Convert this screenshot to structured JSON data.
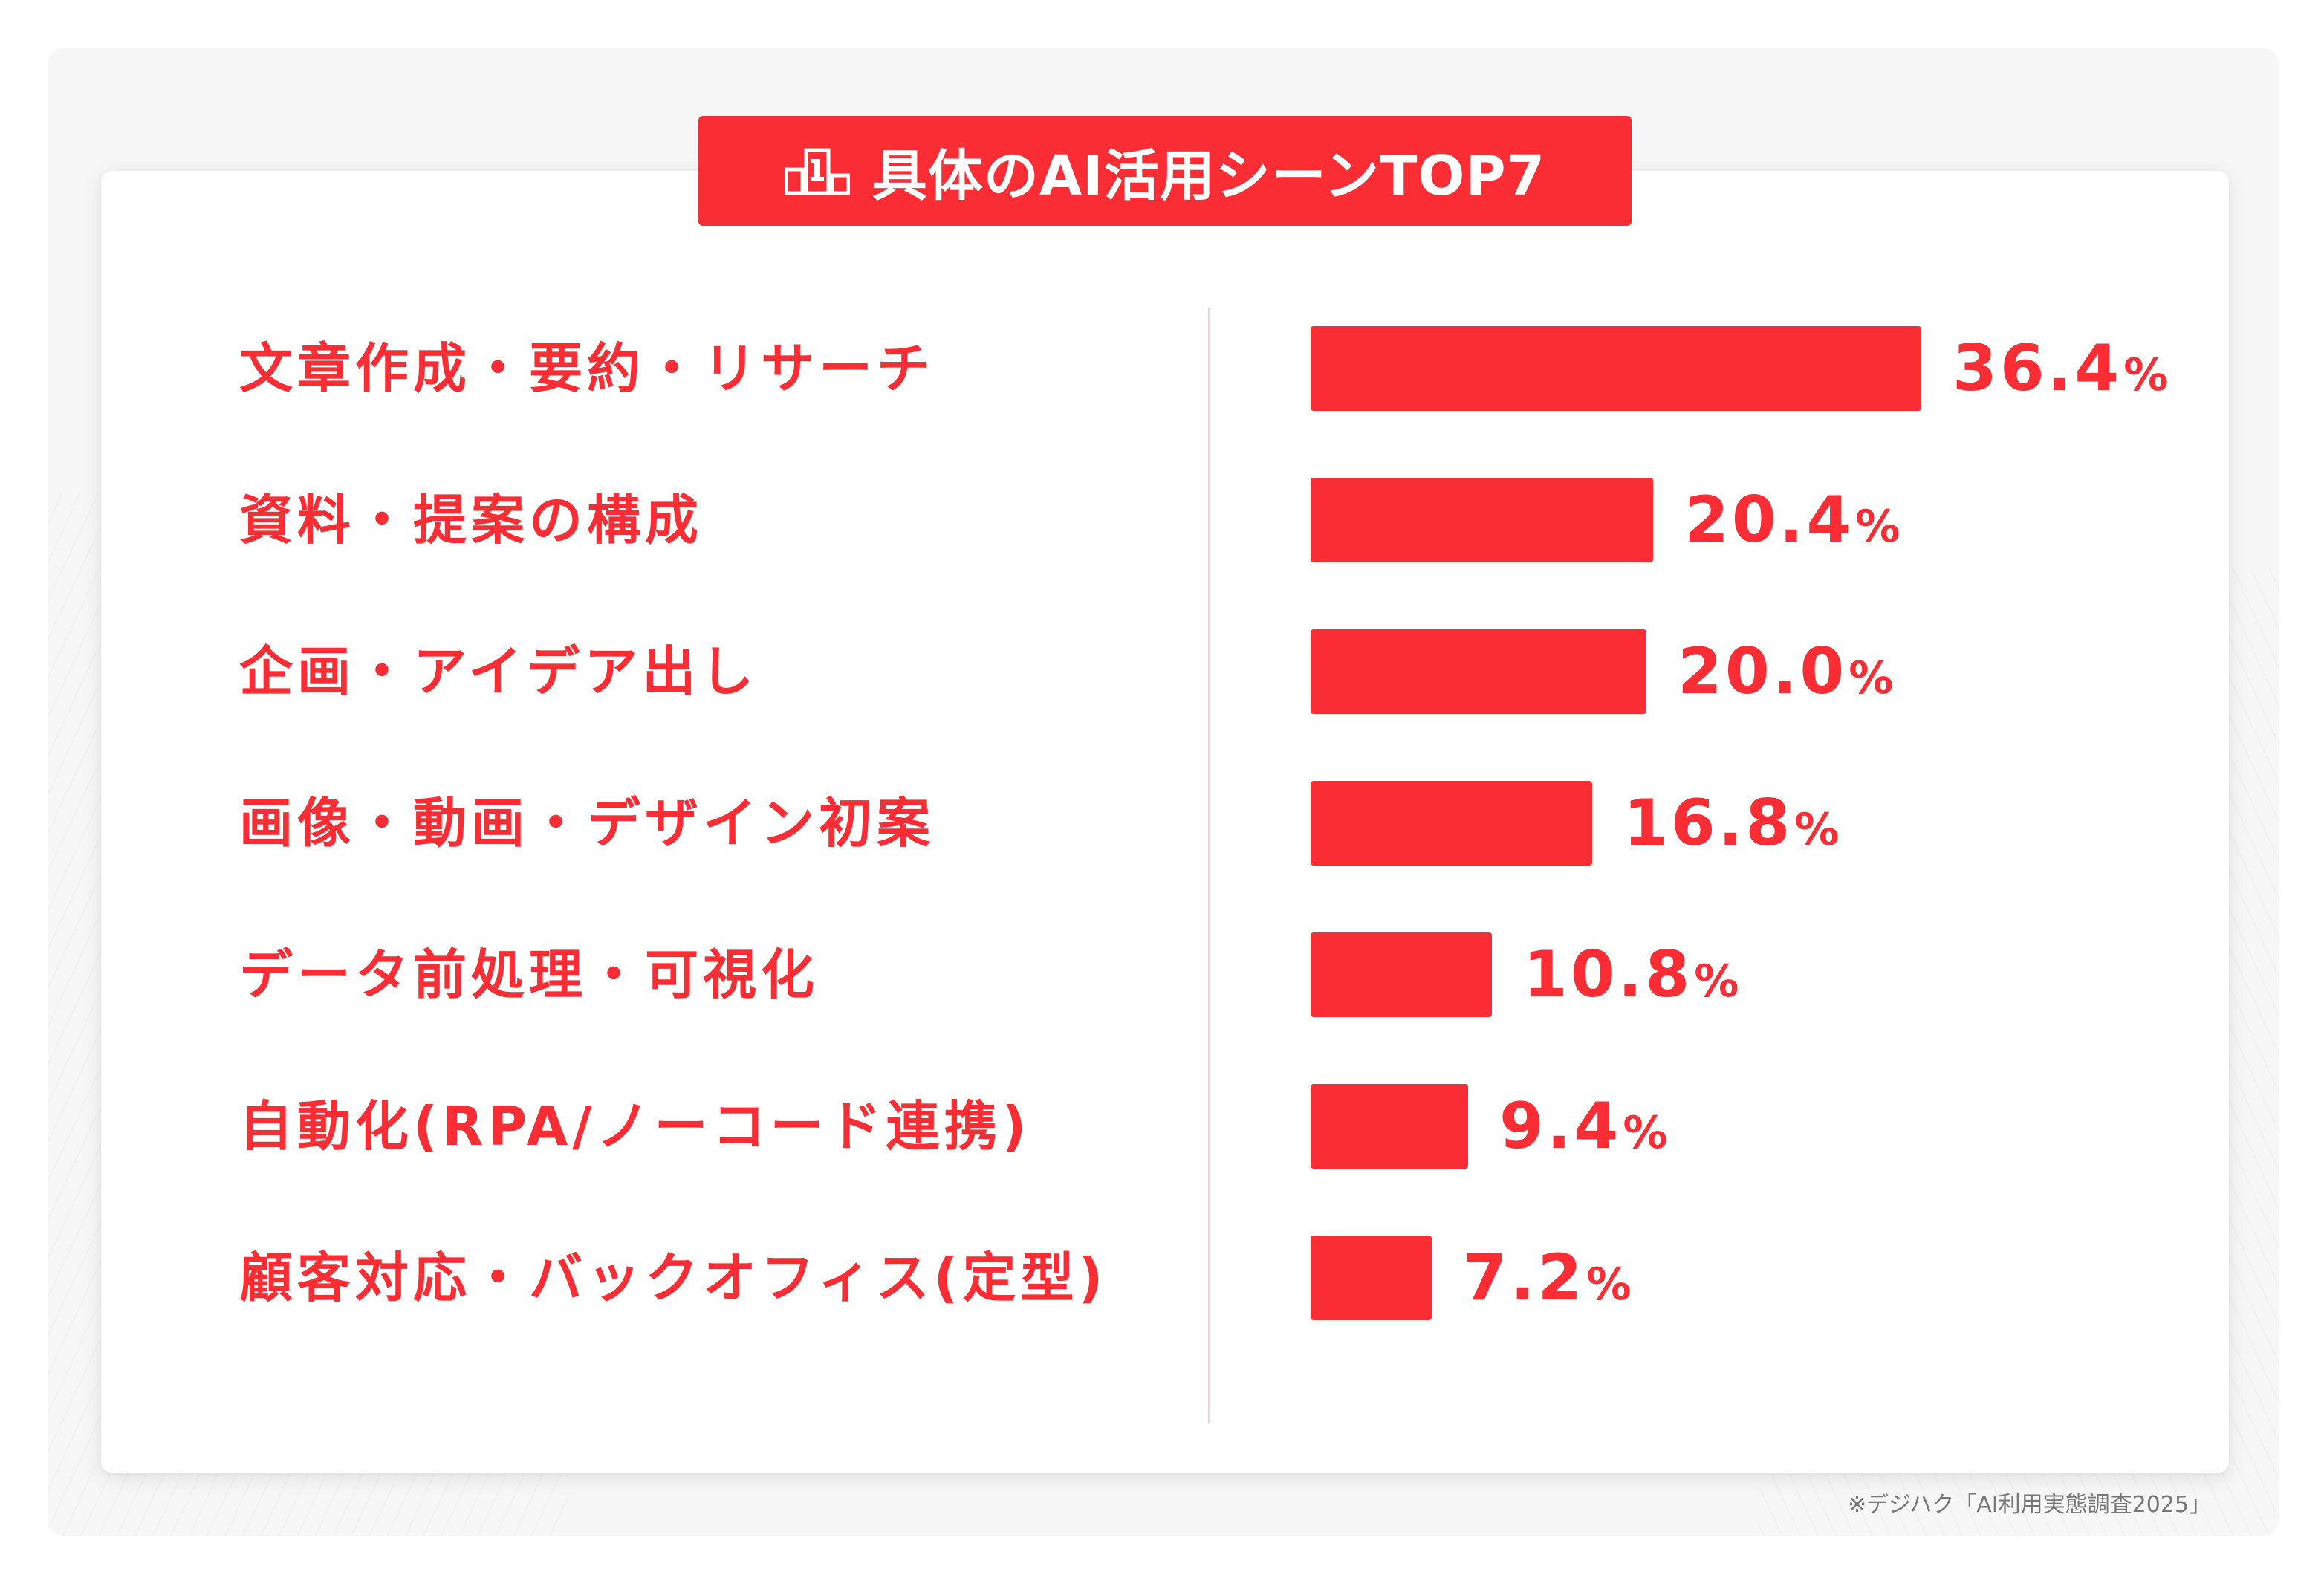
{
  "title": "具体のAI活用シーンTOP7",
  "title_icon": "podium-icon",
  "source_note": "※デジハク「AI利用実態調査2025」",
  "colors": {
    "accent": "#fb2d34",
    "panel_background": "#f7f7f8",
    "card_background": "#ffffff",
    "divider": "#f3d3d6",
    "source_text": "#777777"
  },
  "chart_data": {
    "type": "bar",
    "orientation": "horizontal",
    "title": "具体のAI活用シーンTOP7",
    "unit": "%",
    "categories": [
      "文章作成・要約・リサーチ",
      "資料・提案の構成",
      "企画・アイデア出し",
      "画像・動画・デザイン初案",
      "データ前処理・可視化",
      "自動化(RPA/ノーコード連携)",
      "顧客対応・バックオフィス(定型)"
    ],
    "values": [
      36.4,
      20.4,
      20.0,
      16.8,
      10.8,
      9.4,
      7.2
    ],
    "value_labels": [
      "36.4",
      "20.4",
      "20.0",
      "16.8",
      "10.8",
      "9.4",
      "7.2"
    ],
    "xlabel": "",
    "ylabel": "",
    "xlim": [
      0,
      36.4
    ],
    "grid": false,
    "legend": "none"
  }
}
